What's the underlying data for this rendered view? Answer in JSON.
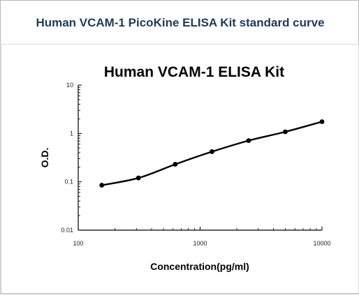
{
  "page": {
    "header": "Human VCAM-1 PicoKine ELISA Kit standard curve"
  },
  "chart_data": {
    "type": "scatter",
    "title": "Human VCAM-1 ELISA Kit",
    "xlabel": "Concentration(pg/ml)",
    "ylabel": "O.D.",
    "x_scale": "log",
    "y_scale": "log",
    "xlim": [
      100,
      10000
    ],
    "ylim": [
      0.01,
      10
    ],
    "x_ticks": [
      100,
      1000,
      10000
    ],
    "x_tick_labels": [
      "100",
      "1000",
      "10000"
    ],
    "y_ticks": [
      0.01,
      0.1,
      1,
      10
    ],
    "y_tick_labels": [
      "0.01",
      "0.1",
      "1",
      "10"
    ],
    "grid": false,
    "legend": "none",
    "series": [
      {
        "x": [
          156,
          312,
          625,
          1250,
          2500,
          5000,
          10000
        ],
        "y": [
          0.085,
          0.12,
          0.23,
          0.42,
          0.71,
          1.08,
          1.75
        ],
        "fit_line": true
      }
    ],
    "colors": {
      "marker": "#000000",
      "line": "#000000"
    }
  }
}
